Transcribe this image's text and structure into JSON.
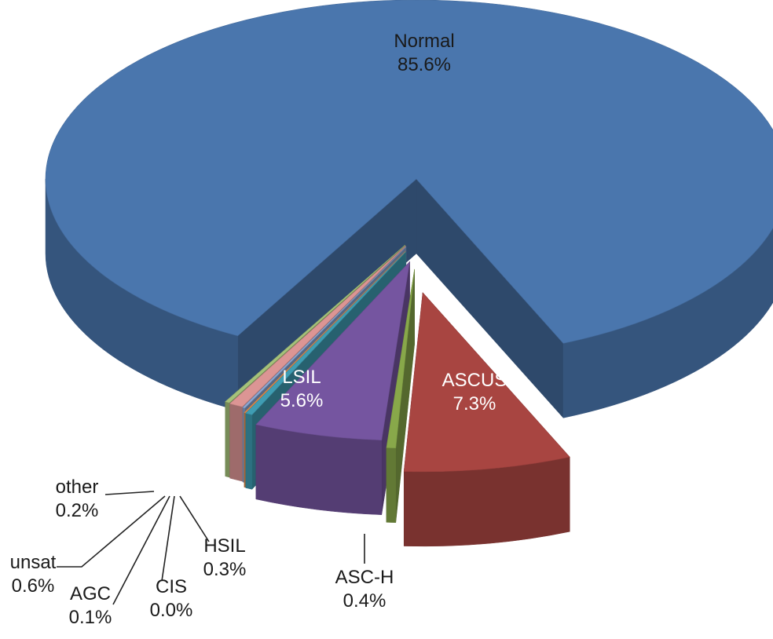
{
  "chart_data": {
    "type": "pie",
    "style": "3d-exploded",
    "legend": "none",
    "slices": [
      {
        "label": "Normal",
        "value": 85.6,
        "value_text": "85.6%",
        "color": "#4a76ad"
      },
      {
        "label": "ASCUS",
        "value": 7.3,
        "value_text": "7.3%",
        "color": "#a84541"
      },
      {
        "label": "ASC-H",
        "value": 0.4,
        "value_text": "0.4%",
        "color": "#88a84a"
      },
      {
        "label": "LSIL",
        "value": 5.6,
        "value_text": "5.6%",
        "color": "#7555a0"
      },
      {
        "label": "HSIL",
        "value": 0.3,
        "value_text": "0.3%",
        "color": "#3f9db3"
      },
      {
        "label": "CIS",
        "value": 0.0,
        "value_text": "0.0%",
        "color": "#e88b46"
      },
      {
        "label": "AGC",
        "value": 0.1,
        "value_text": "0.1%",
        "color": "#8ba7d4"
      },
      {
        "label": "unsat",
        "value": 0.6,
        "value_text": "0.6%",
        "color": "#dc9594"
      },
      {
        "label": "other",
        "value": 0.2,
        "value_text": "0.2%",
        "color": "#a5c27a"
      }
    ]
  }
}
